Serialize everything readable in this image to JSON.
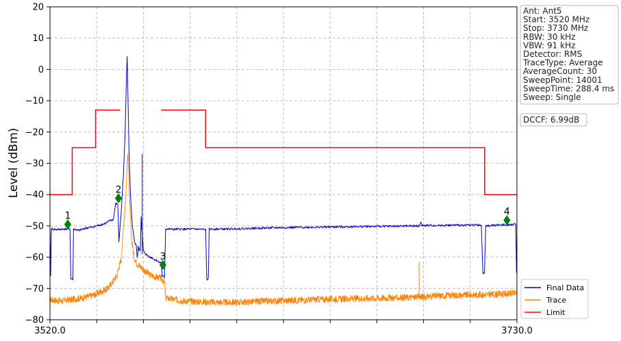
{
  "chart_data": {
    "type": "line",
    "ylabel": "Level (dBm)",
    "xlabel": "",
    "xlim": [
      3520,
      3730
    ],
    "ylim": [
      -80,
      20
    ],
    "grid": true,
    "x_tick_values": [
      3520,
      3541,
      3562,
      3583,
      3604,
      3625,
      3646,
      3667,
      3688,
      3709,
      3730
    ],
    "x_tick_labels": [
      "3520.0",
      "",
      "",
      "",
      "",
      "",
      "",
      "",
      "",
      "",
      "3730.0"
    ],
    "y_ticks": [
      20,
      10,
      0,
      -10,
      -20,
      -30,
      -40,
      -50,
      -60,
      -70,
      -80
    ],
    "y_tick_labels": [
      "20",
      "10",
      "0",
      "−10",
      "−20",
      "−30",
      "−40",
      "−50",
      "−60",
      "−70",
      "−80"
    ],
    "legend_position": "bottom-right",
    "series": [
      {
        "name": "Final Data",
        "color": "#0000cc",
        "points": [
          [
            3520.0,
            -51
          ],
          [
            3520.3,
            -66
          ],
          [
            3520.6,
            -51
          ],
          [
            3523,
            -51.2
          ],
          [
            3526,
            -51
          ],
          [
            3529,
            -51
          ],
          [
            3529.4,
            -67
          ],
          [
            3530.3,
            -67
          ],
          [
            3530.6,
            -51
          ],
          [
            3533,
            -51.5
          ],
          [
            3536,
            -50.7
          ],
          [
            3539,
            -50.4
          ],
          [
            3542,
            -49.8
          ],
          [
            3545,
            -49.2
          ],
          [
            3547,
            -48.3
          ],
          [
            3548.5,
            -48
          ],
          [
            3549.5,
            -43
          ],
          [
            3550.5,
            -43
          ],
          [
            3551,
            -55
          ],
          [
            3552,
            -46
          ],
          [
            3553,
            -34
          ],
          [
            3553.8,
            -20
          ],
          [
            3554.3,
            -5
          ],
          [
            3554.7,
            4.2
          ],
          [
            3555,
            -6
          ],
          [
            3555.5,
            -25
          ],
          [
            3556.2,
            -40
          ],
          [
            3557,
            -50
          ],
          [
            3558,
            -55
          ],
          [
            3558.8,
            -56.3
          ],
          [
            3559.2,
            -60
          ],
          [
            3560,
            -57
          ],
          [
            3560.6,
            -58
          ],
          [
            3561,
            -47
          ],
          [
            3561.3,
            -51
          ],
          [
            3562,
            -58
          ],
          [
            3563,
            -59
          ],
          [
            3564,
            -59.5
          ],
          [
            3565,
            -60
          ],
          [
            3566,
            -60.2
          ],
          [
            3567,
            -60.8
          ],
          [
            3568,
            -61
          ],
          [
            3569,
            -61.5
          ],
          [
            3570,
            -61.8
          ],
          [
            3570.5,
            -66
          ],
          [
            3571.5,
            -66.5
          ],
          [
            3572,
            -51
          ],
          [
            3576,
            -51.1
          ],
          [
            3585,
            -51
          ],
          [
            3590,
            -51.2
          ],
          [
            3590.5,
            -67
          ],
          [
            3591.2,
            -67
          ],
          [
            3591.6,
            -51
          ],
          [
            3600,
            -51
          ],
          [
            3620,
            -50.6
          ],
          [
            3640,
            -50.4
          ],
          [
            3660,
            -50.2
          ],
          [
            3685,
            -50
          ],
          [
            3686.3,
            -50
          ],
          [
            3686.7,
            -48.8
          ],
          [
            3687.2,
            -49.9
          ],
          [
            3700,
            -49.8
          ],
          [
            3713,
            -49.7
          ],
          [
            3714,
            -50.2
          ],
          [
            3714.7,
            -65
          ],
          [
            3715.4,
            -65
          ],
          [
            3716,
            -50
          ],
          [
            3720,
            -49.8
          ],
          [
            3725,
            -49.6
          ],
          [
            3729.5,
            -49.5
          ],
          [
            3729.8,
            -65
          ],
          [
            3730,
            -52
          ]
        ],
        "spikes": [
          [
            3559.5,
            -58,
            -56.3
          ],
          [
            3561.5,
            -59,
            -27
          ]
        ]
      },
      {
        "name": "Trace",
        "color": "#ff8000",
        "points": [
          [
            3520.0,
            -73.5
          ],
          [
            3525,
            -74
          ],
          [
            3530,
            -73.5
          ],
          [
            3535,
            -73
          ],
          [
            3540,
            -72
          ],
          [
            3543,
            -71
          ],
          [
            3546,
            -70
          ],
          [
            3548,
            -68
          ],
          [
            3550,
            -66
          ],
          [
            3551,
            -63
          ],
          [
            3552,
            -61
          ],
          [
            3552.6,
            -55
          ],
          [
            3553.3,
            -48
          ],
          [
            3554,
            -42
          ],
          [
            3554.5,
            -34
          ],
          [
            3555,
            -26
          ],
          [
            3555.5,
            -36
          ],
          [
            3556.1,
            -47
          ],
          [
            3556.8,
            -55
          ],
          [
            3557.8,
            -60
          ],
          [
            3559,
            -62
          ],
          [
            3560,
            -62.5
          ],
          [
            3562,
            -64
          ],
          [
            3564,
            -65.2
          ],
          [
            3566,
            -66
          ],
          [
            3568,
            -66.4
          ],
          [
            3570,
            -66.8
          ],
          [
            3571.5,
            -68
          ],
          [
            3572,
            -73
          ],
          [
            3580,
            -74
          ],
          [
            3590,
            -74.3
          ],
          [
            3600,
            -74.5
          ],
          [
            3620,
            -74
          ],
          [
            3640,
            -73.5
          ],
          [
            3660,
            -73.2
          ],
          [
            3680,
            -72.9
          ],
          [
            3700,
            -72.2
          ],
          [
            3715,
            -72
          ],
          [
            3730,
            -71.5
          ]
        ],
        "spikes": [
          [
            3686,
            -73,
            -61.5
          ]
        ]
      },
      {
        "name": "Limit",
        "color": "#ff0000",
        "segments": [
          [
            [
              3520,
              -40
            ],
            [
              3530,
              -40
            ],
            [
              3530,
              -25
            ],
            [
              3540.5,
              -25
            ],
            [
              3540.5,
              -13
            ],
            [
              3551.5,
              -13
            ]
          ],
          [
            [
              3570,
              -13
            ],
            [
              3590,
              -13
            ],
            [
              3590,
              -25
            ],
            [
              3715.5,
              -25
            ],
            [
              3715.5,
              -40
            ],
            [
              3730,
              -40
            ]
          ]
        ]
      }
    ],
    "markers": [
      {
        "label": "1",
        "x": 3528.0,
        "y": -49.5
      },
      {
        "label": "2",
        "x": 3550.8,
        "y": -41.2
      },
      {
        "label": "3",
        "x": 3570.8,
        "y": -62.5
      },
      {
        "label": "4",
        "x": 3725.5,
        "y": -48.2
      }
    ]
  },
  "info_box": {
    "lines": [
      "Ant: Ant5",
      "Start: 3520 MHz",
      "Stop: 3730 MHz",
      "RBW: 30 kHz",
      "VBW: 91 kHz",
      "Detector: RMS",
      "TraceType: Average",
      "AverageCount: 30",
      "SweepPoint: 14001",
      "SweepTime: 288.4 ms",
      "Sweep: Single"
    ]
  },
  "dccf_box": {
    "text": "DCCF: 6.99dB"
  },
  "legend": {
    "items": [
      {
        "label": "Final Data",
        "color": "#0000cc"
      },
      {
        "label": "Trace",
        "color": "#ff8000"
      },
      {
        "label": "Limit",
        "color": "#ff0000"
      }
    ]
  },
  "colors": {
    "grid": "#b0b0b0",
    "marker": "#008000",
    "axis": "#000000"
  }
}
